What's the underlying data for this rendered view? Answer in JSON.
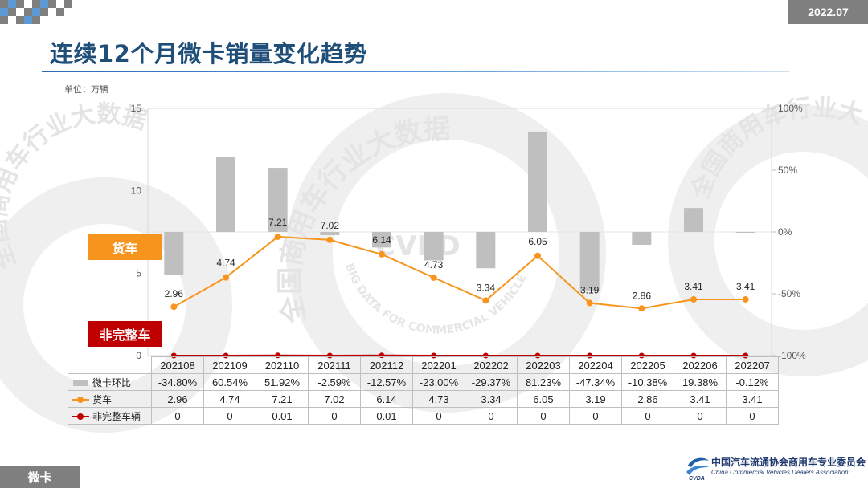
{
  "header": {
    "date_tag": "2022.07",
    "title": "连续12个月微卡销量变化趋势",
    "unit": "单位：万辆"
  },
  "tags": {
    "truck": "货车",
    "non_complete": "非完整车"
  },
  "footer": {
    "section": "微卡",
    "org_cn": "中国汽车流通协会商用车专业委员会",
    "org_en": "China Commercial Vehicles Dealers Association"
  },
  "watermark": {
    "text_cn": "全国商用车行业大数据",
    "text_en": "BIG DATA FOR COMMERCIAL VEHICLE",
    "center_text": "CVBD"
  },
  "colors": {
    "bar": "#bfbfbf",
    "truck": "#f7941d",
    "non_complete": "#c00000",
    "title": "#1f4e79",
    "grey_tag": "#7f7f7f"
  },
  "chart_data": {
    "type": "bar",
    "categories": [
      "202108",
      "202109",
      "202110",
      "202111",
      "202112",
      "202201",
      "202202",
      "202203",
      "202204",
      "202205",
      "202206",
      "202207"
    ],
    "y_left": {
      "ticks": [
        "0",
        "5",
        "10",
        "15"
      ],
      "ylim": [
        0,
        15
      ]
    },
    "y_right": {
      "ticks": [
        "-100%",
        "-50%",
        "0%",
        "50%",
        "100%"
      ],
      "ylim": [
        -100,
        100
      ]
    },
    "series": [
      {
        "name": "微卡环比",
        "type": "bar",
        "axis": "right",
        "values": [
          -34.8,
          60.54,
          51.92,
          -2.59,
          -12.57,
          -23.0,
          -29.37,
          81.23,
          -47.34,
          -10.38,
          19.38,
          -0.12
        ],
        "labels": [
          "-34.80%",
          "60.54%",
          "51.92%",
          "-2.59%",
          "-12.57%",
          "-23.00%",
          "-29.37%",
          "81.23%",
          "-47.34%",
          "-10.38%",
          "19.38%",
          "-0.12%"
        ]
      },
      {
        "name": "货车",
        "type": "line",
        "axis": "left",
        "values": [
          2.96,
          4.74,
          7.21,
          7.02,
          6.14,
          4.73,
          3.34,
          6.05,
          3.19,
          2.86,
          3.41,
          3.41
        ],
        "labels": [
          "2.96",
          "4.74",
          "7.21",
          "7.02",
          "6.14",
          "4.73",
          "3.34",
          "6.05",
          "3.19",
          "2.86",
          "3.41",
          "3.41"
        ]
      },
      {
        "name": "非完整车辆",
        "type": "line",
        "axis": "left",
        "values": [
          0,
          0,
          0.01,
          0,
          0.01,
          0,
          0,
          0,
          0,
          0,
          0,
          0
        ],
        "labels": [
          "0",
          "0",
          "0.01",
          "0",
          "0.01",
          "0",
          "0",
          "0",
          "0",
          "0",
          "0",
          "0"
        ]
      }
    ],
    "grid": false,
    "legend": "bottom-table"
  }
}
